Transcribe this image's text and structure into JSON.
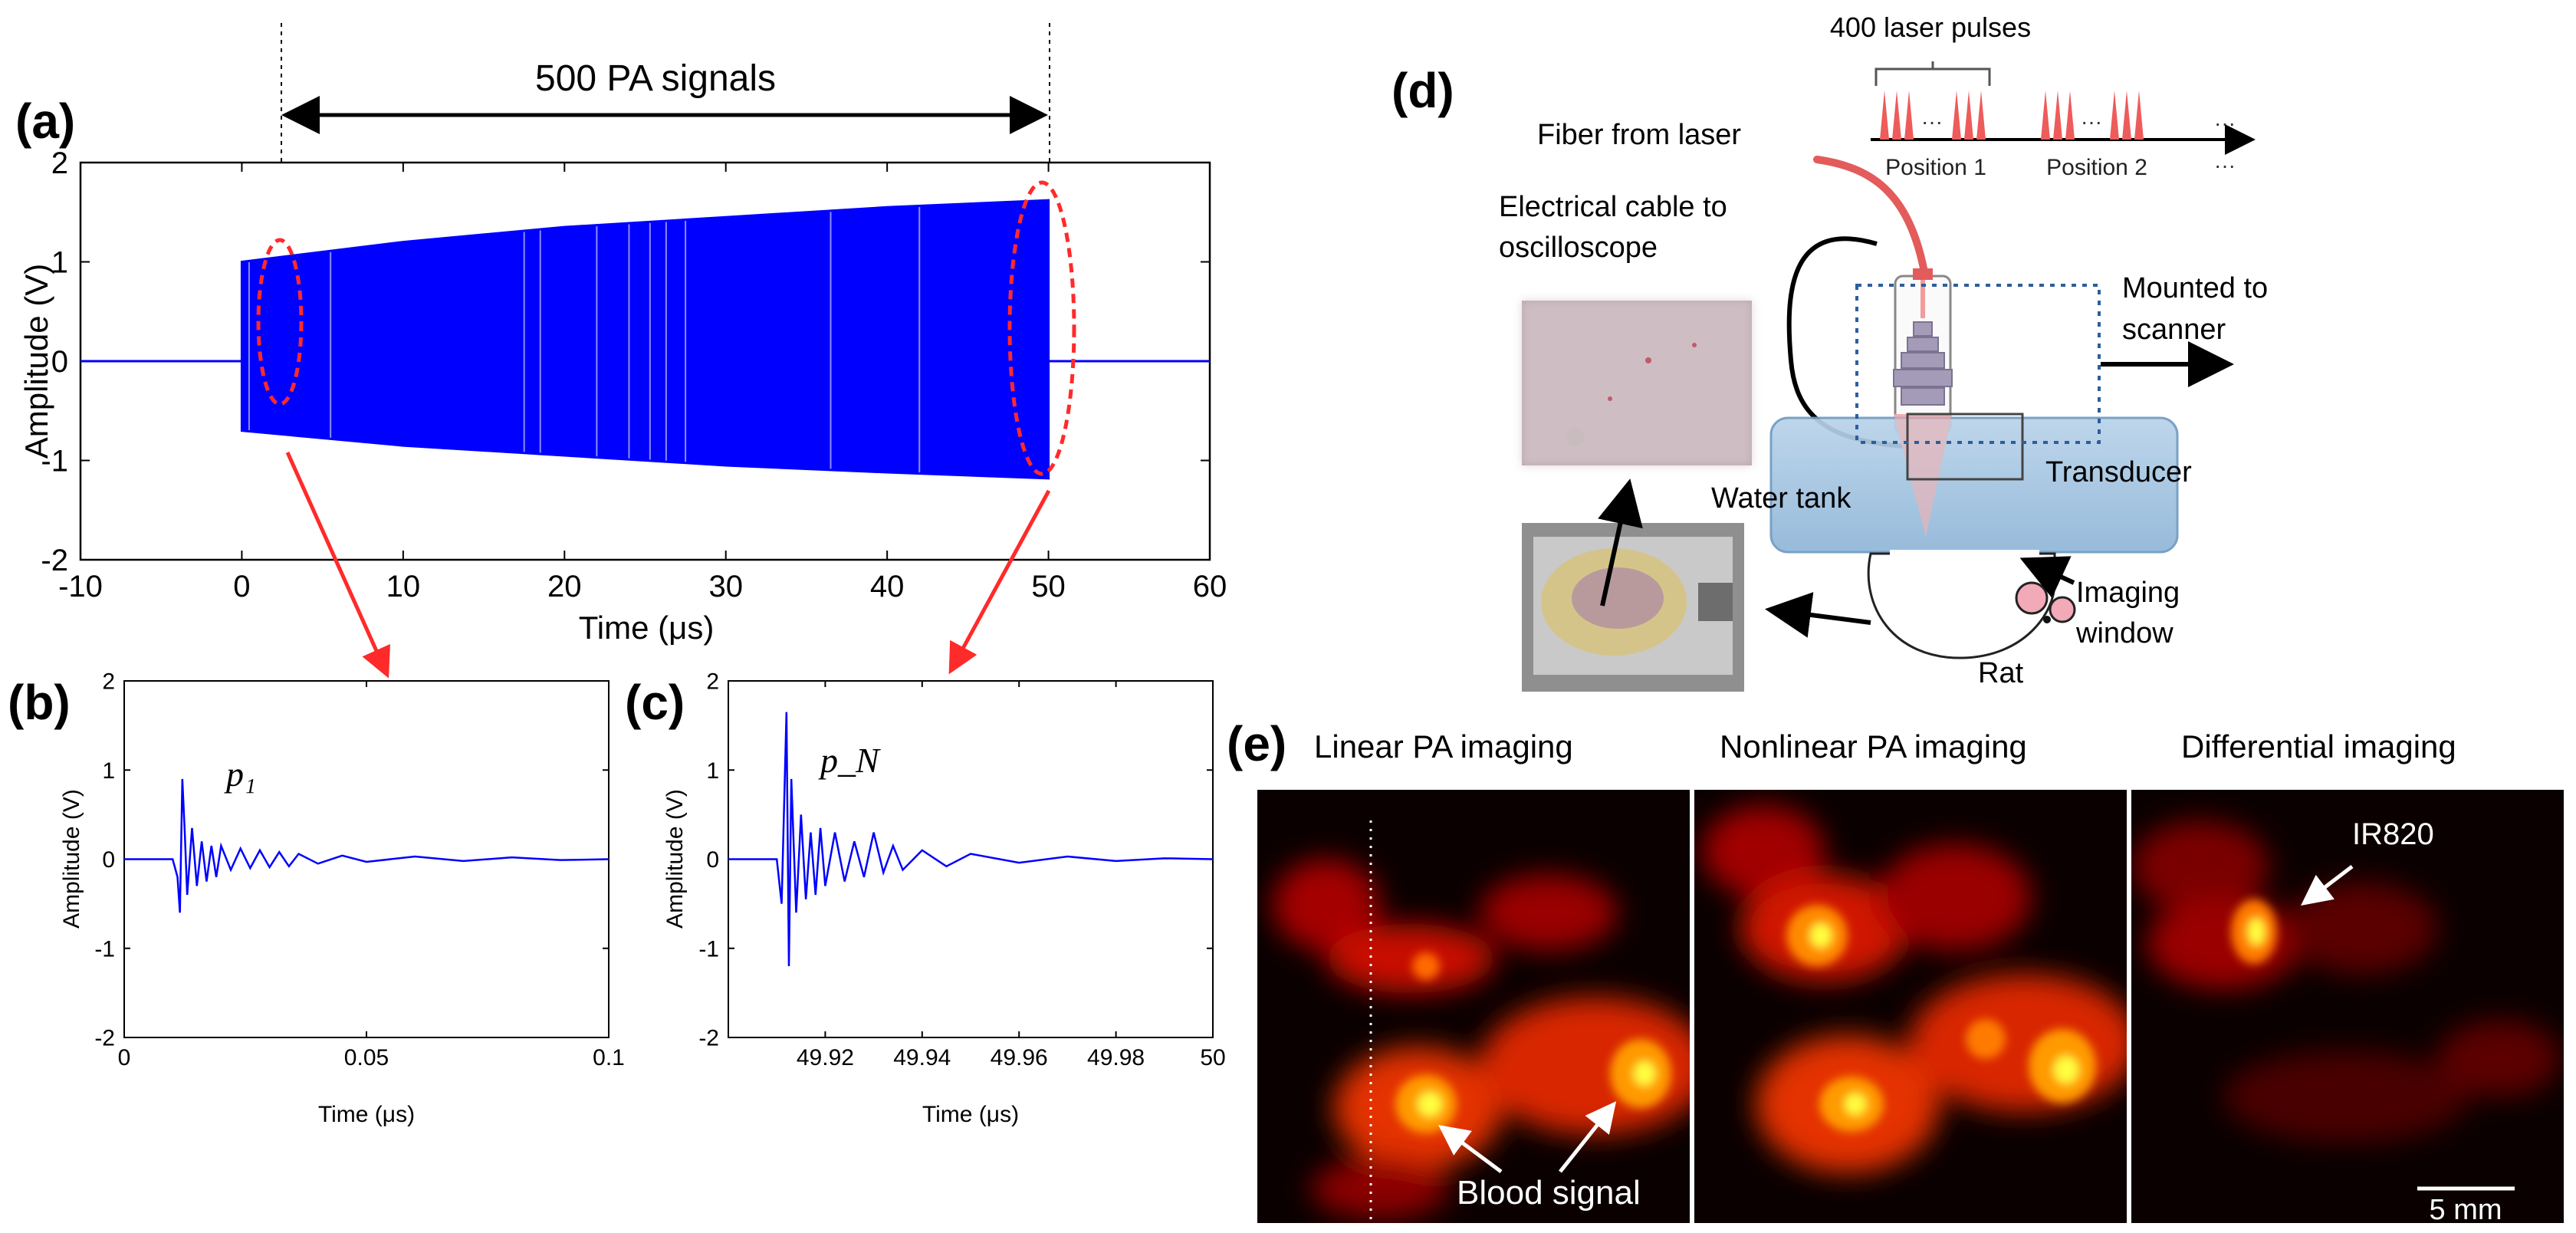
{
  "panels": {
    "a": {
      "label": "(a)",
      "top_text": "500 PA signals",
      "ylabel": "Amplitude (V)",
      "xlabel": "Time (μs)"
    },
    "b": {
      "label": "(b)",
      "ylabel": "Amplitude (V)",
      "xlabel": "Time (μs)",
      "annotation": "p₁"
    },
    "c": {
      "label": "(c)",
      "ylabel": "Amplitude (V)",
      "xlabel": "Time (μs)",
      "annotation": "p_N"
    },
    "d": {
      "label": "(d)",
      "pulses_label": "400 laser pulses",
      "fiber_label": "Fiber from laser",
      "position1": "Position 1",
      "position2": "Position 2",
      "dots1": "···",
      "dots2": "···",
      "cable_line1": "Electrical cable to",
      "cable_line2": "oscilloscope",
      "mounted_line1": "Mounted to",
      "mounted_line2": "scanner",
      "water_tank": "Water tank",
      "transducer": "Transducer",
      "imaging_line1": "Imaging",
      "imaging_line2": "window",
      "rat": "Rat"
    },
    "e": {
      "label": "(e)",
      "titles": [
        "Linear PA imaging",
        "Nonlinear PA imaging",
        "Differential imaging"
      ],
      "ir820": "IR820",
      "blood": "Blood signal",
      "scale": "5 mm"
    }
  },
  "chart_data": [
    {
      "panel": "a",
      "type": "line",
      "xlim": [
        -10,
        60
      ],
      "ylim": [
        -2,
        2
      ],
      "xticks": [
        -10,
        0,
        10,
        20,
        30,
        40,
        50,
        60
      ],
      "yticks": [
        -2,
        -1,
        0,
        1,
        2
      ],
      "series": [
        {
          "name": "PA signal train",
          "color": "#0000ff",
          "envelope_x": [
            0,
            10,
            20,
            30,
            40,
            50
          ],
          "envelope_upper": [
            1.0,
            1.2,
            1.35,
            1.45,
            1.55,
            1.62
          ],
          "envelope_lower": [
            -0.7,
            -0.85,
            -0.95,
            -1.05,
            -1.12,
            -1.18
          ]
        }
      ]
    },
    {
      "panel": "b",
      "type": "line",
      "xlim": [
        0,
        0.1
      ],
      "ylim": [
        -2,
        2
      ],
      "xticks": [
        0,
        0.05,
        0.1
      ],
      "xtick_labels": [
        "0",
        "0.05",
        "0.1"
      ],
      "yticks": [
        -2,
        -1,
        0,
        1,
        2
      ],
      "series": [
        {
          "name": "p1",
          "color": "#0000ff",
          "x": [
            0,
            0.01,
            0.011,
            0.0115,
            0.012,
            0.0125,
            0.013,
            0.014,
            0.015,
            0.016,
            0.017,
            0.018,
            0.019,
            0.02,
            0.022,
            0.024,
            0.026,
            0.028,
            0.03,
            0.032,
            0.034,
            0.036,
            0.04,
            0.045,
            0.05,
            0.06,
            0.07,
            0.08,
            0.09,
            0.1
          ],
          "y": [
            0,
            0,
            -0.2,
            -0.6,
            0.9,
            0.3,
            -0.4,
            0.35,
            -0.3,
            0.2,
            -0.25,
            0.15,
            -0.2,
            0.15,
            -0.12,
            0.12,
            -0.1,
            0.1,
            -0.09,
            0.08,
            -0.08,
            0.06,
            -0.05,
            0.04,
            -0.03,
            0.03,
            -0.02,
            0.02,
            -0.01,
            0
          ]
        }
      ]
    },
    {
      "panel": "c",
      "type": "line",
      "xlim": [
        49.9,
        50
      ],
      "ylim": [
        -2,
        2
      ],
      "xticks": [
        49.92,
        49.94,
        49.96,
        49.98,
        50
      ],
      "xtick_labels": [
        "49.92",
        "49.94",
        "49.96",
        "49.98",
        "50"
      ],
      "yticks": [
        -2,
        -1,
        0,
        1,
        2
      ],
      "series": [
        {
          "name": "pN",
          "color": "#0000ff",
          "x": [
            49.9,
            49.91,
            49.911,
            49.912,
            49.9125,
            49.913,
            49.914,
            49.915,
            49.916,
            49.917,
            49.918,
            49.919,
            49.92,
            49.922,
            49.924,
            49.926,
            49.928,
            49.93,
            49.932,
            49.934,
            49.936,
            49.94,
            49.945,
            49.95,
            49.96,
            49.97,
            49.98,
            49.99,
            50
          ],
          "y": [
            0,
            0,
            -0.5,
            1.65,
            -1.2,
            0.9,
            -0.6,
            0.5,
            -0.45,
            0.3,
            -0.4,
            0.35,
            -0.3,
            0.3,
            -0.25,
            0.2,
            -0.2,
            0.3,
            -0.15,
            0.15,
            -0.12,
            0.1,
            -0.08,
            0.06,
            -0.04,
            0.03,
            -0.02,
            0.01,
            0
          ]
        }
      ]
    }
  ]
}
